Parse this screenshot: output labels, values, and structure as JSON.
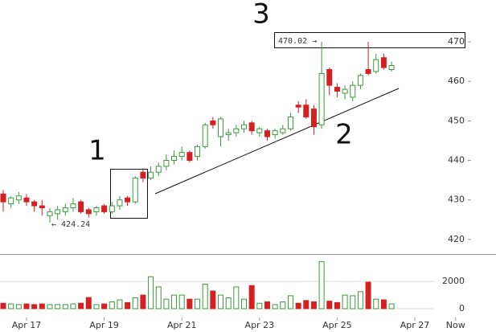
{
  "chart_data": [
    {
      "type": "candlestick",
      "x": [
        16.4,
        16.6,
        16.8,
        17.0,
        17.2,
        17.4,
        17.6,
        17.8,
        18.0,
        18.2,
        18.4,
        18.6,
        18.8,
        19.0,
        19.2,
        19.4,
        19.6,
        19.8,
        20.0,
        20.2,
        20.4,
        20.6,
        20.8,
        21.0,
        21.2,
        21.4,
        21.6,
        21.8,
        22.0,
        22.2,
        22.4,
        22.6,
        22.8,
        23.0,
        23.2,
        23.4,
        23.6,
        23.8,
        24.0,
        24.2,
        24.4,
        24.6,
        24.8,
        25.0,
        25.2,
        25.4,
        25.6,
        25.8,
        26.0,
        26.2,
        26.4
      ],
      "open": [
        431.5,
        429,
        430,
        430.5,
        429.5,
        428.5,
        426,
        426.5,
        427,
        428,
        429.5,
        427.5,
        427,
        428.5,
        427,
        428.5,
        430.5,
        429.5,
        437,
        435.5,
        437,
        438.5,
        440,
        441,
        442,
        441,
        443.5,
        450,
        446,
        446.5,
        447,
        448,
        449.5,
        447,
        447.5,
        446.5,
        447,
        448,
        454,
        454,
        453,
        449,
        463,
        458.5,
        457,
        456,
        459,
        463,
        462.5,
        466,
        463
      ],
      "high": [
        432.5,
        431,
        432,
        431.5,
        430,
        430,
        428,
        428.5,
        429,
        430.5,
        430,
        428,
        428.5,
        429,
        429.5,
        431,
        431,
        436,
        438,
        438.5,
        439.5,
        441.5,
        442.5,
        443.5,
        442.5,
        444,
        449.5,
        451,
        451,
        448,
        449,
        450,
        450,
        448.5,
        448,
        448,
        449,
        452,
        455,
        455.5,
        454,
        470.02,
        463.5,
        459.5,
        459,
        460,
        462,
        470,
        467,
        467,
        465
      ],
      "low": [
        427,
        428,
        429,
        428.5,
        427,
        426,
        424.24,
        425,
        426,
        427,
        426.5,
        425.5,
        426,
        426.5,
        426.5,
        427.5,
        428.5,
        429,
        434.5,
        435,
        436,
        437.5,
        439,
        440,
        439.5,
        440,
        443,
        448,
        443.5,
        445,
        446,
        447,
        446.5,
        446,
        445,
        445.5,
        446.5,
        447.5,
        452,
        450.5,
        446.5,
        448,
        456.5,
        456,
        455.5,
        455,
        458,
        461.5,
        462,
        463,
        462.5
      ],
      "close": [
        429.5,
        430.5,
        431,
        429.5,
        428.5,
        428,
        427,
        427.5,
        428,
        429,
        427,
        426.5,
        428,
        427,
        428.5,
        430,
        429.5,
        435.5,
        435.5,
        437,
        438.5,
        440,
        441,
        442,
        440,
        443.5,
        449,
        449,
        450.5,
        447,
        448,
        449,
        447.5,
        448,
        446,
        447.5,
        448,
        451,
        453.5,
        451,
        448.5,
        462,
        459,
        457.5,
        458,
        459,
        461.5,
        462,
        465.5,
        463.5,
        464
      ],
      "up_color": "#3a9a3a",
      "down_color": "#d42020",
      "xlim": [
        16.317,
        29.09
      ],
      "ylim": [
        416.5,
        480.6
      ],
      "yticks": [
        420,
        430,
        440,
        450,
        460,
        470
      ],
      "annotations": [
        "1",
        "2",
        "3",
        "470.02 →",
        "← 424.24"
      ]
    },
    {
      "type": "bar",
      "x": [
        16.4,
        16.6,
        16.8,
        17.0,
        17.2,
        17.4,
        17.6,
        17.8,
        18.0,
        18.2,
        18.4,
        18.6,
        18.8,
        19.0,
        19.2,
        19.4,
        19.6,
        19.8,
        20.0,
        20.2,
        20.4,
        20.6,
        20.8,
        21.0,
        21.2,
        21.4,
        21.6,
        21.8,
        22.0,
        22.2,
        22.4,
        22.6,
        22.8,
        23.0,
        23.2,
        23.4,
        23.6,
        23.8,
        24.0,
        24.2,
        24.4,
        24.6,
        24.8,
        25.0,
        25.2,
        25.4,
        25.6,
        25.8,
        26.0,
        26.2,
        26.4
      ],
      "values": [
        400,
        350,
        300,
        350,
        300,
        350,
        300,
        300,
        300,
        350,
        400,
        820,
        300,
        350,
        500,
        650,
        450,
        800,
        1000,
        2350,
        1600,
        700,
        1000,
        1000,
        700,
        700,
        1800,
        1300,
        1000,
        800,
        1600,
        700,
        1700,
        400,
        500,
        300,
        500,
        950,
        400,
        600,
        500,
        3450,
        550,
        450,
        1000,
        950,
        1250,
        1950,
        700,
        650,
        350
      ],
      "xlim": [
        16.317,
        29.09
      ],
      "ylim": [
        -650,
        3900
      ],
      "yticks": [
        0,
        2000
      ],
      "xticks": [
        {
          "value": 17,
          "label": "Apr 17"
        },
        {
          "value": 19,
          "label": "Apr 19"
        },
        {
          "value": 21,
          "label": "Apr 21"
        },
        {
          "value": 23,
          "label": "Apr 23"
        },
        {
          "value": 25,
          "label": "Apr 25"
        },
        {
          "value": 27,
          "label": "Apr 27"
        },
        {
          "value": 28.05,
          "label": "Now"
        }
      ]
    }
  ]
}
